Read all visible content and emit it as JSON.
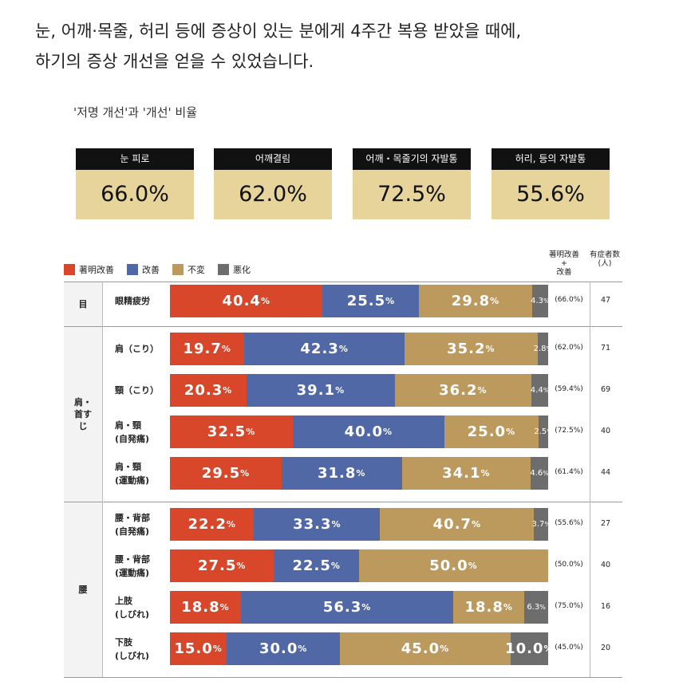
{
  "headline": {
    "line1": "눈, 어깨·목줄, 허리 등에 증상이 있는 분에게 4주간 복용 받았을 때에,",
    "line2": "하기의 증상 개선을 얻을 수 있었습니다."
  },
  "subtitle": "'저명 개선'과 '개선' 비율",
  "stats": [
    {
      "label": "눈 피로",
      "value": "66.0%"
    },
    {
      "label": "어깨결림",
      "value": "62.0%"
    },
    {
      "label": "어깨・목줄기의 자발통",
      "value": "72.5%"
    },
    {
      "label": "허리, 등의 자발통",
      "value": "55.6%"
    }
  ],
  "legend": [
    {
      "label": "著明改善",
      "color": "#d9472b"
    },
    {
      "label": "改善",
      "color": "#5068a6"
    },
    {
      "label": "不変",
      "color": "#bc9a5e"
    },
    {
      "label": "悪化",
      "color": "#6d6d6d"
    }
  ],
  "column_headers": {
    "combined_line1": "著明改善",
    "combined_line2": "+",
    "combined_line3": "改善",
    "count_line1": "有症者数",
    "count_line2": "(人)"
  },
  "chart_data": {
    "type": "bar",
    "stacked": true,
    "orientation": "horizontal",
    "series_names": [
      "著明改善",
      "改善",
      "不変",
      "悪化"
    ],
    "colors": [
      "#d9472b",
      "#5068a6",
      "#bc9a5e",
      "#6d6d6d"
    ],
    "groups": [
      {
        "name": "目",
        "rows": [
          {
            "label": [
              "眼精疲労"
            ],
            "values": [
              40.4,
              25.5,
              29.8,
              4.3
            ],
            "combined": "(66.0%)",
            "n": "47"
          }
        ]
      },
      {
        "name": "肩・首すじ",
        "rows": [
          {
            "label": [
              "肩（こり）"
            ],
            "values": [
              19.7,
              42.3,
              35.2,
              2.8
            ],
            "combined": "(62.0%)",
            "n": "71"
          },
          {
            "label": [
              "頸（こり）"
            ],
            "values": [
              20.3,
              39.1,
              36.2,
              4.4
            ],
            "combined": "(59.4%)",
            "n": "69"
          },
          {
            "label": [
              "肩・頸",
              "(自発痛)"
            ],
            "values": [
              32.5,
              40.0,
              25.0,
              2.5
            ],
            "combined": "(72.5%)",
            "n": "40"
          },
          {
            "label": [
              "肩・頸",
              "(運動痛)"
            ],
            "values": [
              29.5,
              31.8,
              34.1,
              4.6
            ],
            "combined": "(61.4%)",
            "n": "44"
          }
        ]
      },
      {
        "name": "腰",
        "rows": [
          {
            "label": [
              "腰・背部",
              "(自発痛)"
            ],
            "values": [
              22.2,
              33.3,
              40.7,
              3.7
            ],
            "combined": "(55.6%)",
            "n": "27"
          },
          {
            "label": [
              "腰・背部",
              "(運動痛)"
            ],
            "values": [
              27.5,
              22.5,
              50.0,
              0
            ],
            "combined": "(50.0%)",
            "n": "40"
          },
          {
            "label": [
              "上肢",
              "(しびれ)"
            ],
            "values": [
              18.8,
              56.3,
              18.8,
              6.3
            ],
            "combined": "(75.0%)",
            "n": "16"
          },
          {
            "label": [
              "下肢",
              "(しびれ)"
            ],
            "values": [
              15.0,
              30.0,
              45.0,
              10.0
            ],
            "combined": "(45.0%)",
            "n": "20"
          }
        ]
      }
    ]
  }
}
